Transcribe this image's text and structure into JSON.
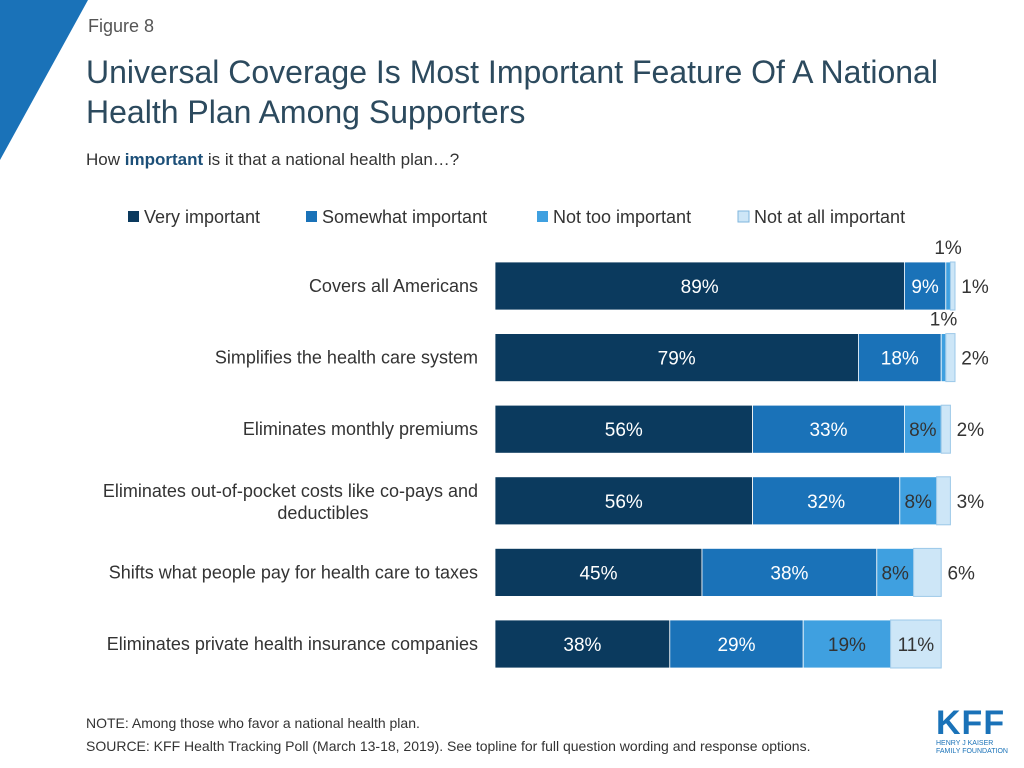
{
  "figure_label": "Figure 8",
  "subtitle_prefix": "How ",
  "subtitle_emphasis": "important",
  "subtitle_suffix": " is it that a national health plan…?",
  "note": "NOTE: Among those who favor a national health plan.",
  "source": "SOURCE: KFF Health Tracking Poll (March 13-18, 2019). See topline for full question wording and response options.",
  "logo": {
    "letters": "KFF",
    "line1": "HENRY J KAISER",
    "line2": "FAMILY FOUNDATION"
  },
  "colors": {
    "very": "#0b3a5e",
    "somewhat": "#1a72b8",
    "not_too": "#3fa0e0",
    "not_at_all": "#cde6f7",
    "accent": "#1a72b8"
  },
  "chart_data": {
    "type": "bar",
    "orientation": "horizontal",
    "stacked": true,
    "title": "Universal Coverage Is Most Important Feature Of A National Health Plan Among Supporters",
    "categories": [
      "Covers all Americans",
      "Simplifies the health care system",
      "Eliminates monthly premiums",
      "Eliminates out-of-pocket costs like co-pays and deductibles",
      "Shifts what people pay for health care to taxes",
      "Eliminates private health insurance companies"
    ],
    "series": [
      {
        "name": "Very important",
        "values": [
          89,
          79,
          56,
          56,
          45,
          38
        ]
      },
      {
        "name": "Somewhat important",
        "values": [
          9,
          18,
          33,
          32,
          38,
          29
        ]
      },
      {
        "name": "Not too important",
        "values": [
          1,
          1,
          8,
          8,
          8,
          19
        ]
      },
      {
        "name": "Not at all important",
        "values": [
          1,
          2,
          2,
          3,
          6,
          11
        ]
      }
    ],
    "legend_position": "top",
    "xlim": [
      0,
      100
    ]
  }
}
